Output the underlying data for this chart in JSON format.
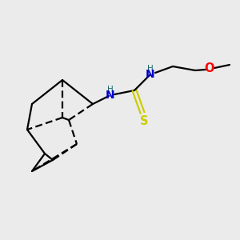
{
  "background_color": "#ebebeb",
  "colors": {
    "bond": "#000000",
    "N": "#1a6b6b",
    "N_label": "#0000cc",
    "S": "#cccc00",
    "O": "#ff0000",
    "H": "#1a6b6b"
  },
  "figsize": [
    3.0,
    3.0
  ],
  "dpi": 100,
  "bond_lw": 1.6,
  "font_size": 9.5
}
